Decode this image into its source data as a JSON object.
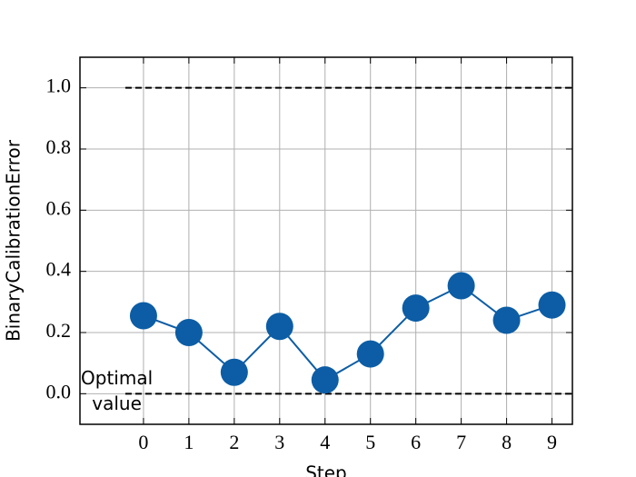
{
  "chart_data": {
    "type": "line",
    "xlabel": "Step",
    "ylabel": "BinaryCalibrationError",
    "annotation": "Optimal\nvalue",
    "categories": [
      0,
      1,
      2,
      3,
      4,
      5,
      6,
      7,
      8,
      9
    ],
    "values": [
      0.255,
      0.2,
      0.07,
      0.22,
      0.045,
      0.13,
      0.28,
      0.353,
      0.24,
      0.29
    ],
    "color": "#0c5da5",
    "reference_lines": [
      0,
      1
    ],
    "xlim": [
      -1.4,
      9.45
    ],
    "xticks": [
      0,
      1,
      2,
      3,
      4,
      5,
      6,
      7,
      8,
      9
    ],
    "ylim": [
      -0.1,
      1.1
    ],
    "yticks": [
      {
        "value": 0,
        "label": "0.0"
      },
      0.2,
      0.4,
      0.6,
      0.8,
      {
        "value": 1,
        "label": "1.0"
      }
    ],
    "grid": true
  }
}
